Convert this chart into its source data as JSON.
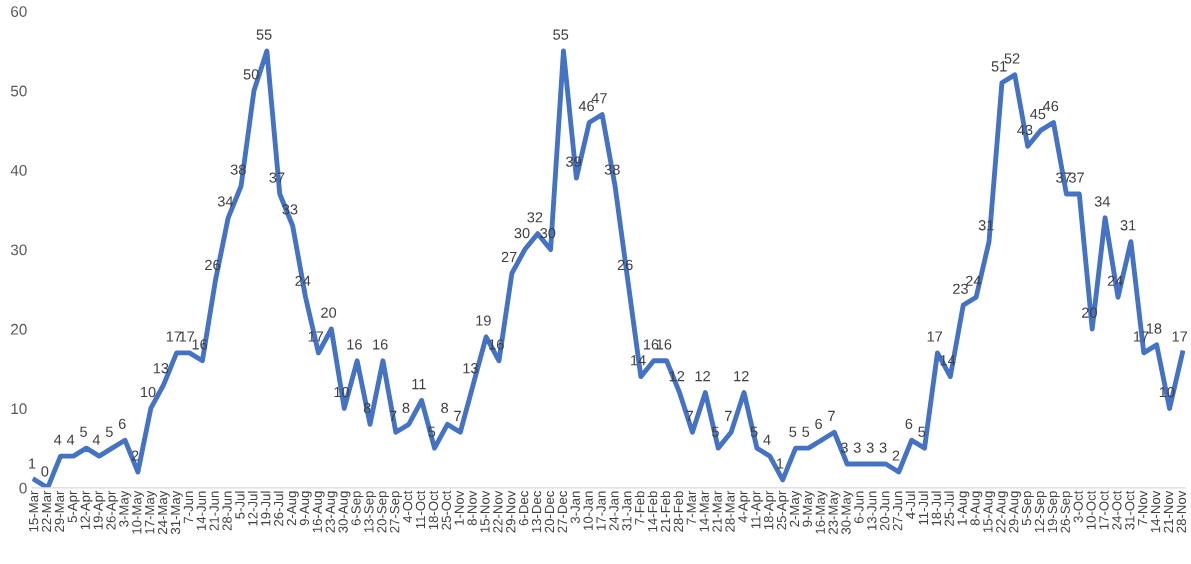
{
  "chart_data": {
    "type": "line",
    "categories": [
      "15-Mar",
      "22-Mar",
      "29-Mar",
      "5-Apr",
      "12-Apr",
      "19-Apr",
      "26-Apr",
      "3-May",
      "10-May",
      "17-May",
      "24-May",
      "31-May",
      "7-Jun",
      "14-Jun",
      "21-Jun",
      "28-Jun",
      "5-Jul",
      "12-Jul",
      "19-Jul",
      "26-Jul",
      "2-Aug",
      "9-Aug",
      "16-Aug",
      "23-Aug",
      "30-Aug",
      "6-Sep",
      "13-Sep",
      "20-Sep",
      "27-Sep",
      "4-Oct",
      "11-Oct",
      "18-Oct",
      "25-Oct",
      "1-Nov",
      "8-Nov",
      "15-Nov",
      "22-Nov",
      "29-Nov",
      "6-Dec",
      "13-Dec",
      "20-Dec",
      "27-Dec",
      "3-Jan",
      "10-Jan",
      "17-Jan",
      "24-Jan",
      "31-Jan",
      "7-Feb",
      "14-Feb",
      "21-Feb",
      "28-Feb",
      "7-Mar",
      "14-Mar",
      "21-Mar",
      "28-Mar",
      "4-Apr",
      "11-Apr",
      "18-Apr",
      "25-Apr",
      "2-May",
      "9-May",
      "16-May",
      "23-May",
      "30-May",
      "6-Jun",
      "13-Jun",
      "20-Jun",
      "27-Jun",
      "4-Jul",
      "11-Jul",
      "18-Jul",
      "25-Jul",
      "1-Aug",
      "8-Aug",
      "15-Aug",
      "22-Aug",
      "29-Aug",
      "5-Sep",
      "12-Sep",
      "19-Sep",
      "26-Sep",
      "3-Oct",
      "10-Oct",
      "17-Oct",
      "24-Oct",
      "31-Oct",
      "7-Nov",
      "14-Nov",
      "21-Nov",
      "28-Nov"
    ],
    "series": [
      {
        "color": "#4472c4",
        "values": [
          1,
          0,
          4,
          4,
          5,
          4,
          5,
          6,
          2,
          10,
          13,
          17,
          17,
          16,
          26,
          34,
          38,
          50,
          55,
          37,
          33,
          24,
          17,
          20,
          10,
          16,
          8,
          16,
          7,
          8,
          11,
          5,
          8,
          7,
          13,
          19,
          16,
          27,
          30,
          32,
          30,
          55,
          39,
          46,
          47,
          38,
          26,
          14,
          16,
          16,
          12,
          7,
          12,
          5,
          7,
          12,
          5,
          4,
          1,
          5,
          5,
          6,
          7,
          3,
          3,
          3,
          3,
          2,
          6,
          5,
          17,
          14,
          23,
          24,
          31,
          51,
          52,
          43,
          45,
          46,
          37,
          37,
          20,
          34,
          24,
          31,
          17,
          18,
          10,
          17
        ]
      }
    ],
    "ylim": [
      0,
      60
    ],
    "yticks": [
      0,
      10,
      20,
      30,
      40,
      50,
      60
    ],
    "data_labels": true,
    "marker": "none",
    "line_style": "solid"
  }
}
